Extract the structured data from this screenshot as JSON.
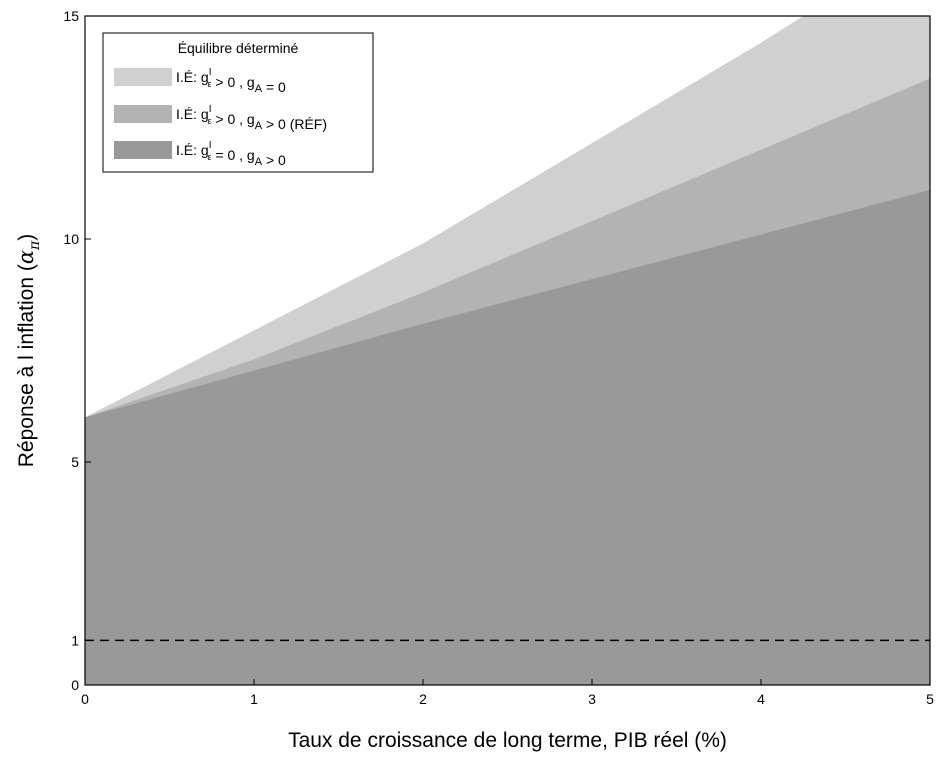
{
  "chart_data": {
    "type": "area",
    "xlabel": "Taux de croissance de long terme, PIB réel (%)",
    "ylabel": "Réponse à l inflation (α_π)",
    "xlim": [
      0,
      5
    ],
    "ylim": [
      0,
      15
    ],
    "xticks": [
      0,
      1,
      2,
      3,
      4,
      5
    ],
    "yticks": [
      0,
      1,
      5,
      10,
      15
    ],
    "grid": false,
    "legend": {
      "title": "Équilibre déterminé",
      "placement": "top-left"
    },
    "series": [
      {
        "name": "I.É: g_ε^I > 0 , g_A = 0",
        "color": "#d0d0d0",
        "x": [
          0,
          1,
          2,
          3,
          4,
          4.25,
          5
        ],
        "y_upper": [
          6.0,
          7.95,
          9.9,
          12.15,
          14.4,
          15.0,
          15.0
        ]
      },
      {
        "name": "I.É: g_ε^I > 0 , g_A > 0 (RÉF)",
        "color": "#b3b3b3",
        "x": [
          0,
          1,
          2,
          3,
          4,
          5
        ],
        "y_upper": [
          6.0,
          7.3,
          8.8,
          10.4,
          12.0,
          13.6
        ]
      },
      {
        "name": "I.É: g_ε^I = 0 , g_A > 0",
        "color": "#999999",
        "x": [
          0,
          1,
          2,
          3,
          4,
          5
        ],
        "y_upper": [
          6.0,
          7.05,
          8.1,
          9.1,
          10.1,
          11.1
        ]
      }
    ],
    "reference_line": {
      "y": 1,
      "style": "dashed"
    }
  }
}
